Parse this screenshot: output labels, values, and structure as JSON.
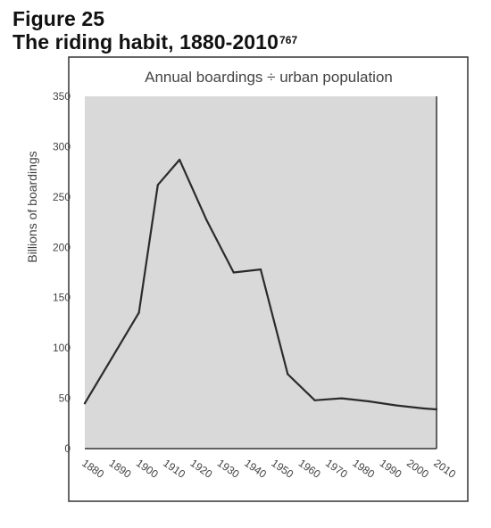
{
  "figure": {
    "number_label": "Figure 25",
    "heading": "The riding habit, 1880-2010",
    "footnote_ref": "767"
  },
  "colors": {
    "plot_background": "#d9d9d9",
    "line": "#2b2b2b",
    "frame": "#333333",
    "text": "#444444"
  },
  "chart_data": {
    "type": "line",
    "title": "Annual boardings ÷ urban population",
    "xlabel": "",
    "ylabel": "Billions of boardings",
    "x_ticks": [
      1880,
      1890,
      1900,
      1910,
      1920,
      1930,
      1940,
      1950,
      1960,
      1970,
      1980,
      1990,
      2000,
      2010
    ],
    "y_ticks": [
      0,
      50,
      100,
      150,
      200,
      250,
      300,
      350
    ],
    "xlim": [
      1880,
      2010
    ],
    "ylim": [
      0,
      350
    ],
    "grid": false,
    "legend": "none",
    "series": [
      {
        "x": [
          1880,
          1890,
          1900,
          1907,
          1915,
          1925,
          1935,
          1945,
          1955,
          1965,
          1975,
          1985,
          1995,
          2005,
          2010
        ],
        "values": [
          45,
          90,
          135,
          262,
          287,
          227,
          175,
          178,
          74,
          48,
          50,
          47,
          43,
          40,
          39
        ]
      }
    ]
  }
}
